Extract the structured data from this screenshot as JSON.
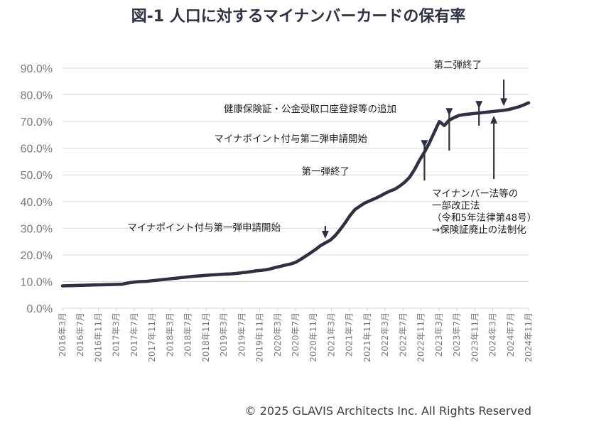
{
  "chart_data": {
    "type": "line",
    "title": "図-1  人口に対するマイナンバーカードの保有率",
    "xlabel": "",
    "ylabel": "",
    "ylim": [
      0,
      90
    ],
    "y_ticks": [
      "0.0%",
      "10.0%",
      "20.0%",
      "30.0%",
      "40.0%",
      "50.0%",
      "60.0%",
      "70.0%",
      "80.0%",
      "90.0%"
    ],
    "y_tick_values": [
      0,
      10,
      20,
      30,
      40,
      50,
      60,
      70,
      80,
      90
    ],
    "x_tick_labels": [
      "2016年3月",
      "2016年7月",
      "2016年11月",
      "2017年3月",
      "2017年7月",
      "2017年11月",
      "2018年3月",
      "2018年7月",
      "2018年11月",
      "2019年3月",
      "2019年7月",
      "2019年11月",
      "2020年3月",
      "2020年7月",
      "2020年11月",
      "2021年3月",
      "2021年7月",
      "2021年11月",
      "2022年3月",
      "2022年7月",
      "2022年11月",
      "2023年3月",
      "2023年7月",
      "2023年11月",
      "2024年3月",
      "2024年7月",
      "2024年11月"
    ],
    "grid": true,
    "legend": "none",
    "line_color": "#2d3142",
    "series": [
      {
        "values": [
          8.4,
          8.45,
          8.5,
          8.55,
          8.6,
          8.65,
          8.7,
          8.75,
          8.8,
          8.85,
          8.9,
          8.95,
          9.0,
          9.4,
          9.7,
          9.9,
          10.0,
          10.1,
          10.3,
          10.5,
          10.7,
          10.9,
          11.1,
          11.3,
          11.5,
          11.7,
          11.9,
          12.05,
          12.2,
          12.35,
          12.5,
          12.6,
          12.7,
          12.8,
          12.9,
          13.05,
          13.25,
          13.45,
          13.7,
          14.0,
          14.2,
          14.4,
          14.8,
          15.3,
          15.7,
          16.2,
          16.6,
          17.2,
          18.3,
          19.5,
          20.7,
          22.0,
          23.4,
          24.5,
          25.5,
          27.2,
          29.5,
          32.0,
          34.8,
          37.0,
          38.3,
          39.5,
          40.3,
          41.1,
          42.0,
          43.0,
          43.9,
          44.6,
          45.8,
          47.2,
          49.1,
          52.0,
          55.5,
          58.5,
          62.0,
          66.0,
          70.0,
          68.5,
          70.5,
          71.5,
          72.3,
          72.6,
          72.8,
          73.0,
          73.2,
          73.4,
          73.6,
          73.8,
          74.0,
          74.2,
          74.5,
          75.0,
          75.5,
          76.2,
          77.0
        ]
      }
    ],
    "annotations": [
      {
        "lines": [
          "マイナポイント付与第一弾申請開始"
        ],
        "x_index": 53
      },
      {
        "lines": [
          "第一弾終了"
        ],
        "x_index": 73
      },
      {
        "lines": [
          "マイナポイント付与第二弾申請開始"
        ],
        "x_index": 78
      },
      {
        "lines": [
          "健康保険証・公金受取口座登録等の追加"
        ],
        "x_index": 84
      },
      {
        "lines": [
          "第二弾終了"
        ],
        "x_index": 89
      },
      {
        "lines": [
          "マイナンバー法等の",
          "一部改正法",
          "（令和5年法律第48号）",
          "→保険証廃止の法制化"
        ],
        "x_index": 87
      }
    ]
  },
  "footer": {
    "copyright": "© 2025 GLAVIS Architects Inc. All Rights Reserved"
  }
}
